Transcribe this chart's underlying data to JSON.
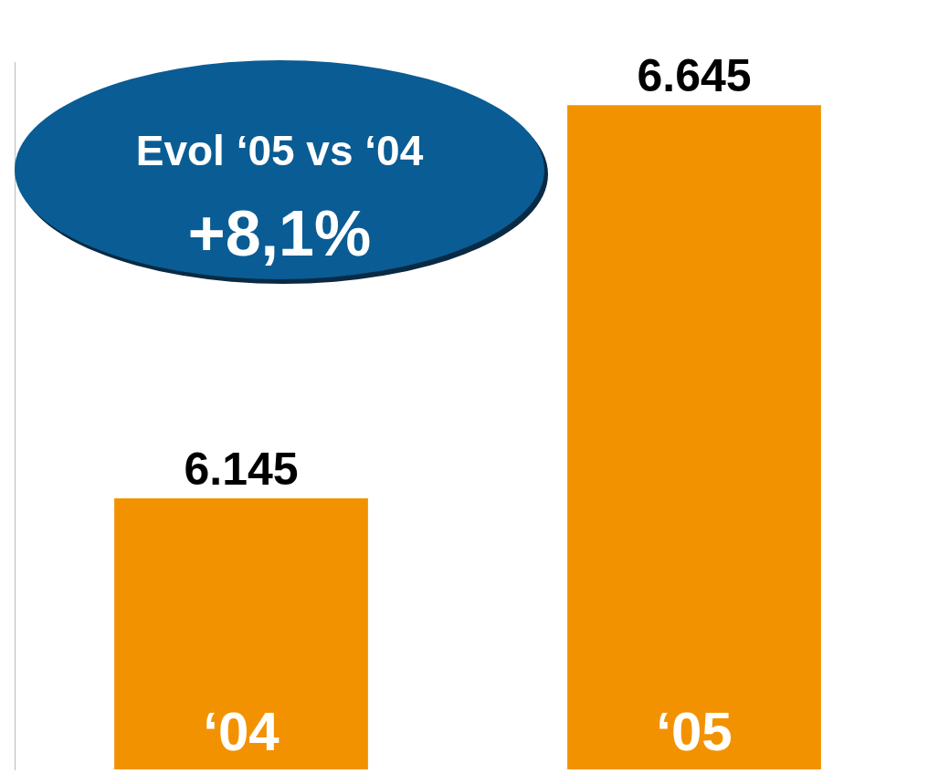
{
  "chart_data": {
    "type": "bar",
    "categories": [
      "‘04",
      "‘05"
    ],
    "values": [
      6145,
      6645
    ],
    "value_labels": [
      "6.145",
      "6.645"
    ],
    "color": "#f39200",
    "ylim": [
      5800,
      6700
    ],
    "annotations": [
      "Evol ‘05 vs ‘04",
      "+8,1%"
    ]
  }
}
